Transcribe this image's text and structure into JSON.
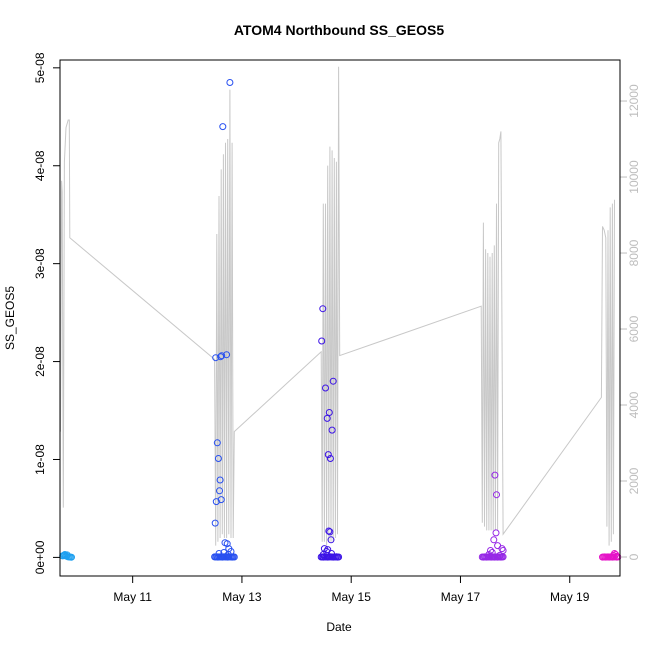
{
  "chart_data": {
    "type": "scatter",
    "title": "ATOM4 Northbound SS_GEOS5",
    "xlabel": "Date",
    "ylabel": "SS_GEOS5",
    "colors": {
      "frame": "#000000",
      "altitude_line": "#c8c8c8",
      "right_axis": "#bdbdbd",
      "flight_colors": [
        "#1ea0f0",
        "#2850f0",
        "#3c14e6",
        "#9628e6",
        "#e614c8"
      ]
    },
    "x_axis": {
      "unit": "day of May 2018 (fractional)",
      "range": [
        9.67,
        19.92
      ],
      "ticks": [
        {
          "value": 11,
          "label": "May 11"
        },
        {
          "value": 13,
          "label": "May 13"
        },
        {
          "value": 15,
          "label": "May 15"
        },
        {
          "value": 17,
          "label": "May 17"
        },
        {
          "value": 19,
          "label": "May 19"
        }
      ]
    },
    "y_left": {
      "range": [
        -1.9e-09,
        5.08e-08
      ],
      "ticks": [
        {
          "value": 0,
          "label": "0e+00"
        },
        {
          "value": 1e-08,
          "label": "1e-08"
        },
        {
          "value": 2e-08,
          "label": "2e-08"
        },
        {
          "value": 3e-08,
          "label": "3e-08"
        },
        {
          "value": 4e-08,
          "label": "4e-08"
        },
        {
          "value": 5e-08,
          "label": "5e-08"
        }
      ]
    },
    "y_right": {
      "range": [
        -500,
        13080
      ],
      "ticks": [
        {
          "value": 0,
          "label": "0"
        },
        {
          "value": 2000,
          "label": "2000"
        },
        {
          "value": 4000,
          "label": "4000"
        },
        {
          "value": 6000,
          "label": "6000"
        },
        {
          "value": 8000,
          "label": "8000"
        },
        {
          "value": 10000,
          "label": "10000"
        },
        {
          "value": 12000,
          "label": "12000"
        }
      ]
    },
    "altitude_trace": [
      [
        9.68,
        3300
      ],
      [
        9.7,
        9900
      ],
      [
        9.71,
        9600
      ],
      [
        9.73,
        1300
      ],
      [
        9.75,
        10400
      ],
      [
        9.78,
        11300
      ],
      [
        9.82,
        11500
      ],
      [
        9.84,
        11500
      ],
      [
        9.85,
        8400
      ],
      [
        12.5,
        5200
      ],
      [
        12.52,
        300
      ],
      [
        12.54,
        8500
      ],
      [
        12.56,
        400
      ],
      [
        12.58,
        9500
      ],
      [
        12.6,
        500
      ],
      [
        12.62,
        10200
      ],
      [
        12.64,
        600
      ],
      [
        12.66,
        10600
      ],
      [
        12.68,
        500
      ],
      [
        12.7,
        10900
      ],
      [
        12.72,
        500
      ],
      [
        12.74,
        11000
      ],
      [
        12.76,
        600
      ],
      [
        12.78,
        12300
      ],
      [
        12.8,
        500
      ],
      [
        12.82,
        10900
      ],
      [
        12.84,
        500
      ],
      [
        12.86,
        3300
      ],
      [
        14.45,
        5400
      ],
      [
        14.47,
        400
      ],
      [
        14.49,
        9300
      ],
      [
        14.51,
        400
      ],
      [
        14.53,
        9300
      ],
      [
        14.55,
        300
      ],
      [
        14.57,
        10300
      ],
      [
        14.59,
        400
      ],
      [
        14.61,
        10800
      ],
      [
        14.63,
        400
      ],
      [
        14.65,
        10700
      ],
      [
        14.67,
        400
      ],
      [
        14.69,
        10500
      ],
      [
        14.71,
        500
      ],
      [
        14.73,
        10400
      ],
      [
        14.75,
        600
      ],
      [
        14.77,
        12900
      ],
      [
        14.79,
        5300
      ],
      [
        17.38,
        6600
      ],
      [
        17.4,
        900
      ],
      [
        17.42,
        8800
      ],
      [
        17.44,
        800
      ],
      [
        17.46,
        8100
      ],
      [
        17.48,
        700
      ],
      [
        17.5,
        8000
      ],
      [
        17.52,
        700
      ],
      [
        17.54,
        7900
      ],
      [
        17.56,
        700
      ],
      [
        17.58,
        8000
      ],
      [
        17.6,
        700
      ],
      [
        17.62,
        8200
      ],
      [
        17.64,
        700
      ],
      [
        17.66,
        9300
      ],
      [
        17.68,
        700
      ],
      [
        17.7,
        10900
      ],
      [
        17.72,
        11000
      ],
      [
        17.74,
        11200
      ],
      [
        17.78,
        600
      ],
      [
        19.58,
        4200
      ],
      [
        19.6,
        8700
      ],
      [
        19.63,
        8600
      ],
      [
        19.66,
        8400
      ],
      [
        19.68,
        800
      ],
      [
        19.7,
        8600
      ],
      [
        19.72,
        300
      ],
      [
        19.74,
        9200
      ],
      [
        19.76,
        400
      ],
      [
        19.78,
        9300
      ],
      [
        19.8,
        600
      ],
      [
        19.82,
        9400
      ]
    ],
    "series": [
      {
        "x": [
          9.72,
          9.74,
          9.76,
          9.78,
          9.8,
          9.82,
          9.84,
          9.86,
          9.88,
          9.76,
          9.8
        ],
        "y": [
          1.5e-10,
          2e-10,
          1.8e-10,
          1.5e-10,
          1e-10,
          5e-11,
          5e-11,
          3e-11,
          2e-11,
          3e-10,
          2.5e-10
        ]
      },
      {
        "x": [
          12.5,
          12.52,
          12.54,
          12.56,
          12.58,
          12.6,
          12.62,
          12.64,
          12.66,
          12.68,
          12.7,
          12.72,
          12.74,
          12.76,
          12.78,
          12.8,
          12.82,
          12.84,
          12.86,
          12.78,
          12.65,
          12.61,
          12.63,
          12.52,
          12.72,
          12.55,
          12.57,
          12.6,
          12.59,
          12.62,
          12.53,
          12.51,
          12.69,
          12.73,
          12.76,
          12.8,
          12.67,
          12.58,
          12.75
        ],
        "y": [
          5e-11,
          4e-11,
          6e-11,
          3e-11,
          5e-11,
          4e-11,
          6e-11,
          3e-11,
          5e-11,
          7e-11,
          4e-11,
          5e-11,
          3e-11,
          6e-11,
          5e-11,
          4e-11,
          3e-11,
          5e-11,
          4e-11,
          4.85e-08,
          4.4e-08,
          2.05e-08,
          2.06e-08,
          2.04e-08,
          2.07e-08,
          1.17e-08,
          1.01e-08,
          7.9e-09,
          6.8e-09,
          5.9e-09,
          5.7e-09,
          3.5e-09,
          1.5e-09,
          1.4e-09,
          9e-10,
          6e-10,
          5e-10,
          4e-10,
          3e-10
        ]
      },
      {
        "x": [
          14.45,
          14.47,
          14.49,
          14.51,
          14.53,
          14.55,
          14.57,
          14.59,
          14.61,
          14.63,
          14.65,
          14.67,
          14.69,
          14.71,
          14.73,
          14.75,
          14.77,
          14.48,
          14.46,
          14.53,
          14.67,
          14.6,
          14.56,
          14.65,
          14.58,
          14.62,
          14.61,
          14.59,
          14.63,
          14.51,
          14.57,
          14.55,
          14.64,
          14.49
        ],
        "y": [
          4e-11,
          5e-11,
          3e-11,
          6e-11,
          4e-11,
          5e-11,
          3e-11,
          4e-11,
          6e-11,
          5e-11,
          4e-11,
          3e-11,
          5e-11,
          4e-11,
          6e-11,
          3e-11,
          4e-11,
          2.54e-08,
          2.21e-08,
          1.73e-08,
          1.8e-08,
          1.48e-08,
          1.42e-08,
          1.3e-08,
          1.05e-08,
          1.01e-08,
          2.6e-09,
          2.7e-09,
          1.8e-09,
          9e-10,
          8e-10,
          6e-10,
          4e-10,
          3e-10
        ]
      },
      {
        "x": [
          17.4,
          17.42,
          17.44,
          17.46,
          17.48,
          17.5,
          17.52,
          17.54,
          17.56,
          17.58,
          17.6,
          17.62,
          17.64,
          17.66,
          17.68,
          17.7,
          17.72,
          17.74,
          17.76,
          17.78,
          17.63,
          17.66,
          17.65,
          17.61,
          17.68,
          17.76,
          17.78,
          17.55,
          17.58,
          17.52,
          17.72
        ],
        "y": [
          4e-11,
          3e-11,
          5e-11,
          4e-11,
          3e-11,
          5e-11,
          4e-11,
          6e-11,
          3e-11,
          4e-11,
          5e-11,
          3e-11,
          4e-11,
          5e-11,
          3e-11,
          4e-11,
          5e-11,
          3e-11,
          4e-11,
          5e-11,
          8.4e-09,
          6.4e-09,
          2.5e-09,
          1.8e-09,
          1.2e-09,
          9e-10,
          7e-10,
          7e-10,
          5e-10,
          3e-10,
          2e-10
        ]
      },
      {
        "x": [
          19.6,
          19.62,
          19.64,
          19.66,
          19.68,
          19.7,
          19.72,
          19.74,
          19.76,
          19.78,
          19.8,
          19.82,
          19.86,
          19.88,
          19.82,
          19.84,
          19.8,
          19.86
        ],
        "y": [
          3e-11,
          4e-11,
          5e-11,
          3e-11,
          4e-11,
          5e-11,
          3e-11,
          4e-11,
          5e-11,
          3e-11,
          4e-11,
          5e-11,
          3e-11,
          4e-11,
          4e-10,
          3e-10,
          2e-10,
          1e-10
        ]
      }
    ]
  }
}
